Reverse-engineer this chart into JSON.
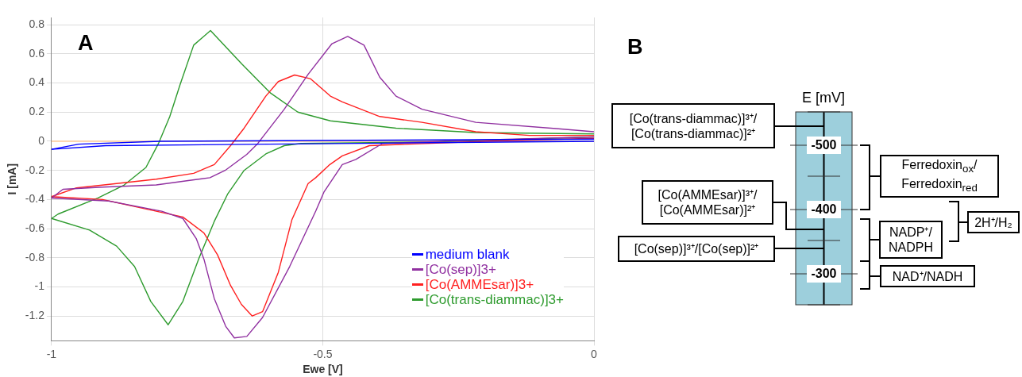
{
  "chart_data": [
    {
      "type": "line",
      "title": "A",
      "xlabel": "Ewe [V]",
      "ylabel": "I [mA]",
      "xlim": [
        -1,
        0
      ],
      "xticks": [
        -1,
        -0.5,
        0
      ],
      "ylim": [
        -1.37,
        0.85
      ],
      "yticks": [
        0.8,
        0.6,
        0.4,
        0.2,
        0,
        -0.2,
        -0.4,
        -0.6,
        -0.8,
        -1,
        -1.2
      ],
      "grid": true,
      "legend": "bottom right",
      "marker": "none",
      "ref_lines": [
        {
          "axis": "y",
          "value": 0,
          "color": "#ffcc99"
        }
      ],
      "series": [
        {
          "name": "medium blank",
          "color": "#0000ff",
          "x": [
            -1,
            -0.9,
            -0.6,
            -0.3,
            0
          ],
          "values": [
            -0.055,
            -0.03,
            -0.02,
            -0.01,
            0
          ]
        },
        {
          "color": "#0000ff",
          "x": [
            -1,
            -0.95,
            -0.8,
            -0.5,
            0
          ],
          "values": [
            -0.055,
            -0.02,
            0,
            0.005,
            0.015
          ]
        },
        {
          "name": "[Co(sep)]3+",
          "color": "#9030a0",
          "x": [
            -1,
            -0.895,
            -0.797,
            -0.758,
            -0.733,
            -0.719,
            -0.7,
            -0.679,
            -0.663,
            -0.64,
            -0.611,
            -0.561,
            -0.513,
            -0.498,
            -0.464,
            -0.439,
            -0.39,
            -0.2,
            0
          ],
          "values": [
            -0.39,
            -0.41,
            -0.48,
            -0.53,
            -0.67,
            -0.81,
            -1.08,
            -1.27,
            -1.35,
            -1.34,
            -1.21,
            -0.86,
            -0.48,
            -0.35,
            -0.16,
            -0.125,
            -0.015,
            0.01,
            0.03
          ]
        },
        {
          "color": "#9030a0",
          "x": [
            -1,
            -0.979,
            -0.906,
            -0.807,
            -0.748,
            -0.708,
            -0.68,
            -0.64,
            -0.62,
            -0.571,
            -0.527,
            -0.483,
            -0.454,
            -0.424,
            -0.395,
            -0.365,
            -0.317,
            -0.218,
            -0.07,
            0
          ],
          "values": [
            -0.39,
            -0.33,
            -0.315,
            -0.3,
            -0.27,
            -0.25,
            -0.2,
            -0.09,
            -0.016,
            0.22,
            0.46,
            0.67,
            0.72,
            0.66,
            0.44,
            0.31,
            0.22,
            0.13,
            0.087,
            0.065
          ]
        },
        {
          "name": "[Co(AMMEsar)]3+",
          "color": "#ff2020",
          "x": [
            -1,
            -0.906,
            -0.807,
            -0.758,
            -0.719,
            -0.694,
            -0.67,
            -0.65,
            -0.63,
            -0.611,
            -0.582,
            -0.557,
            -0.527,
            -0.513,
            -0.487,
            -0.464,
            -0.414,
            -0.2,
            0
          ],
          "values": [
            -0.38,
            -0.4,
            -0.48,
            -0.52,
            -0.63,
            -0.78,
            -0.99,
            -1.12,
            -1.2,
            -1.17,
            -0.9,
            -0.54,
            -0.29,
            -0.25,
            -0.16,
            -0.1,
            -0.03,
            0,
            0.02
          ]
        },
        {
          "color": "#ff2020",
          "x": [
            -1,
            -0.954,
            -0.88,
            -0.807,
            -0.738,
            -0.7,
            -0.67,
            -0.645,
            -0.605,
            -0.582,
            -0.552,
            -0.523,
            -0.486,
            -0.464,
            -0.395,
            -0.317,
            -0.218,
            -0.119,
            0
          ],
          "values": [
            -0.38,
            -0.32,
            -0.29,
            -0.26,
            -0.22,
            -0.16,
            -0.03,
            0.09,
            0.31,
            0.41,
            0.455,
            0.43,
            0.31,
            0.27,
            0.17,
            0.13,
            0.065,
            0.04,
            0.04
          ]
        },
        {
          "name": "[Co(trans-diammac)]3+",
          "color": "#2e9b2e",
          "x": [
            -1,
            -0.93,
            -0.88,
            -0.847,
            -0.817,
            -0.785,
            -0.758,
            -0.729,
            -0.7,
            -0.675,
            -0.645,
            -0.605,
            -0.571,
            -0.54,
            -0.3,
            0
          ],
          "values": [
            -0.53,
            -0.61,
            -0.72,
            -0.86,
            -1.1,
            -1.26,
            -1.1,
            -0.81,
            -0.55,
            -0.36,
            -0.2,
            -0.087,
            -0.03,
            -0.015,
            -0.005,
            0.03
          ]
        },
        {
          "color": "#2e9b2e",
          "x": [
            -1,
            -0.988,
            -0.915,
            -0.866,
            -0.826,
            -0.803,
            -0.782,
            -0.763,
            -0.738,
            -0.707,
            -0.649,
            -0.596,
            -0.546,
            -0.486,
            -0.365,
            -0.218,
            0
          ],
          "values": [
            -0.53,
            -0.5,
            -0.39,
            -0.3,
            -0.18,
            -0.016,
            0.17,
            0.39,
            0.66,
            0.76,
            0.53,
            0.33,
            0.2,
            0.14,
            0.09,
            0.06,
            0.05
          ]
        }
      ]
    },
    {
      "type": "other",
      "title": "B",
      "ylabel": "E [mV]",
      "annotations": [
        "-500",
        "-400",
        "-300",
        "[Co(trans-diammac)]³⁺/\n[Co(trans-diammac)]²⁺",
        "[Co(AMMEsar)]³⁺/\n[Co(AMMEsar)]²⁺",
        "[Co(sep)]³⁺/[Co(sep)]²⁺",
        "Ferredoxin$_{ox}$/\nFerredoxin$_{red}$",
        "NADP⁺/\nNADPH",
        "NAD⁺/NADH",
        "2H⁺/H₂"
      ]
    }
  ]
}
